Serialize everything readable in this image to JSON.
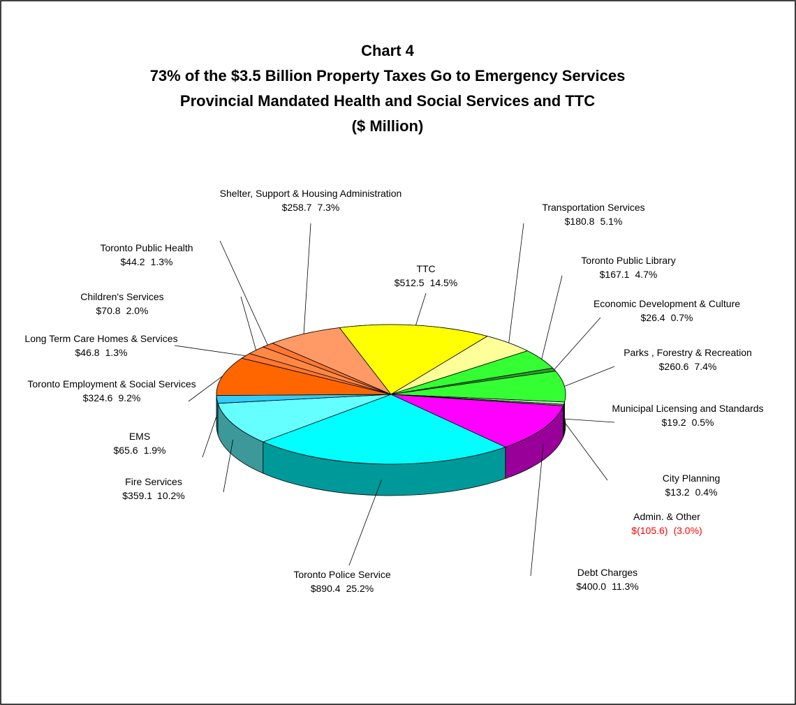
{
  "chart_data": {
    "type": "pie3d",
    "title": "Chart 4",
    "subtitle": [
      "73% of the $3.5 Billion Property Taxes Go to Emergency Services",
      "Provincial Mandated Health and Social Services and TTC",
      "($ Million)"
    ],
    "categories": [
      "TTC",
      "Transportation Services",
      "Toronto Public Library",
      "Economic Development & Culture",
      "Parks , Forestry & Recreation",
      "Municipal Licensing and Standards",
      "City Planning",
      "Admin. & Other",
      "Debt Charges",
      "Toronto Police Service",
      "Fire Services",
      "EMS",
      "Toronto Employment & Social Services",
      "Long Term Care Homes & Services",
      "Children's Services",
      "Toronto Public Health",
      "Shelter, Support & Housing Administration"
    ],
    "values": [
      512.5,
      180.8,
      167.1,
      26.4,
      260.6,
      19.2,
      13.2,
      -105.6,
      400.0,
      890.4,
      359.1,
      65.6,
      324.6,
      46.8,
      70.8,
      44.2,
      258.7
    ],
    "value_labels": [
      "$512.5",
      "$180.8",
      "$167.1",
      "$26.4",
      "$260.6",
      "$19.2",
      "$13.2",
      "$(105.6)",
      "$400.0",
      "$890.4",
      "$359.1",
      "$65.6",
      "$324.6",
      "$46.8",
      "$70.8",
      "$44.2",
      "$258.7"
    ],
    "shares": [
      "14.5%",
      "5.1%",
      "4.7%",
      "0.7%",
      "7.4%",
      "0.5%",
      "0.4%",
      "(3.0%)",
      "11.3%",
      "25.2%",
      "10.2%",
      "1.9%",
      "9.2%",
      "1.3%",
      "2.0%",
      "1.3%",
      "7.3%"
    ],
    "colors": [
      "#ffff00",
      "#ffff99",
      "#33ff33",
      "#339933",
      "#33ff33",
      "#ccffcc",
      "#669966",
      "#999999",
      "#ff00ff",
      "#00ffff",
      "#66ffff",
      "#33ccff",
      "#ff6600",
      "#ff7733",
      "#ff8844",
      "#ff7733",
      "#ff9966"
    ],
    "negative_color": "#ff0000"
  }
}
